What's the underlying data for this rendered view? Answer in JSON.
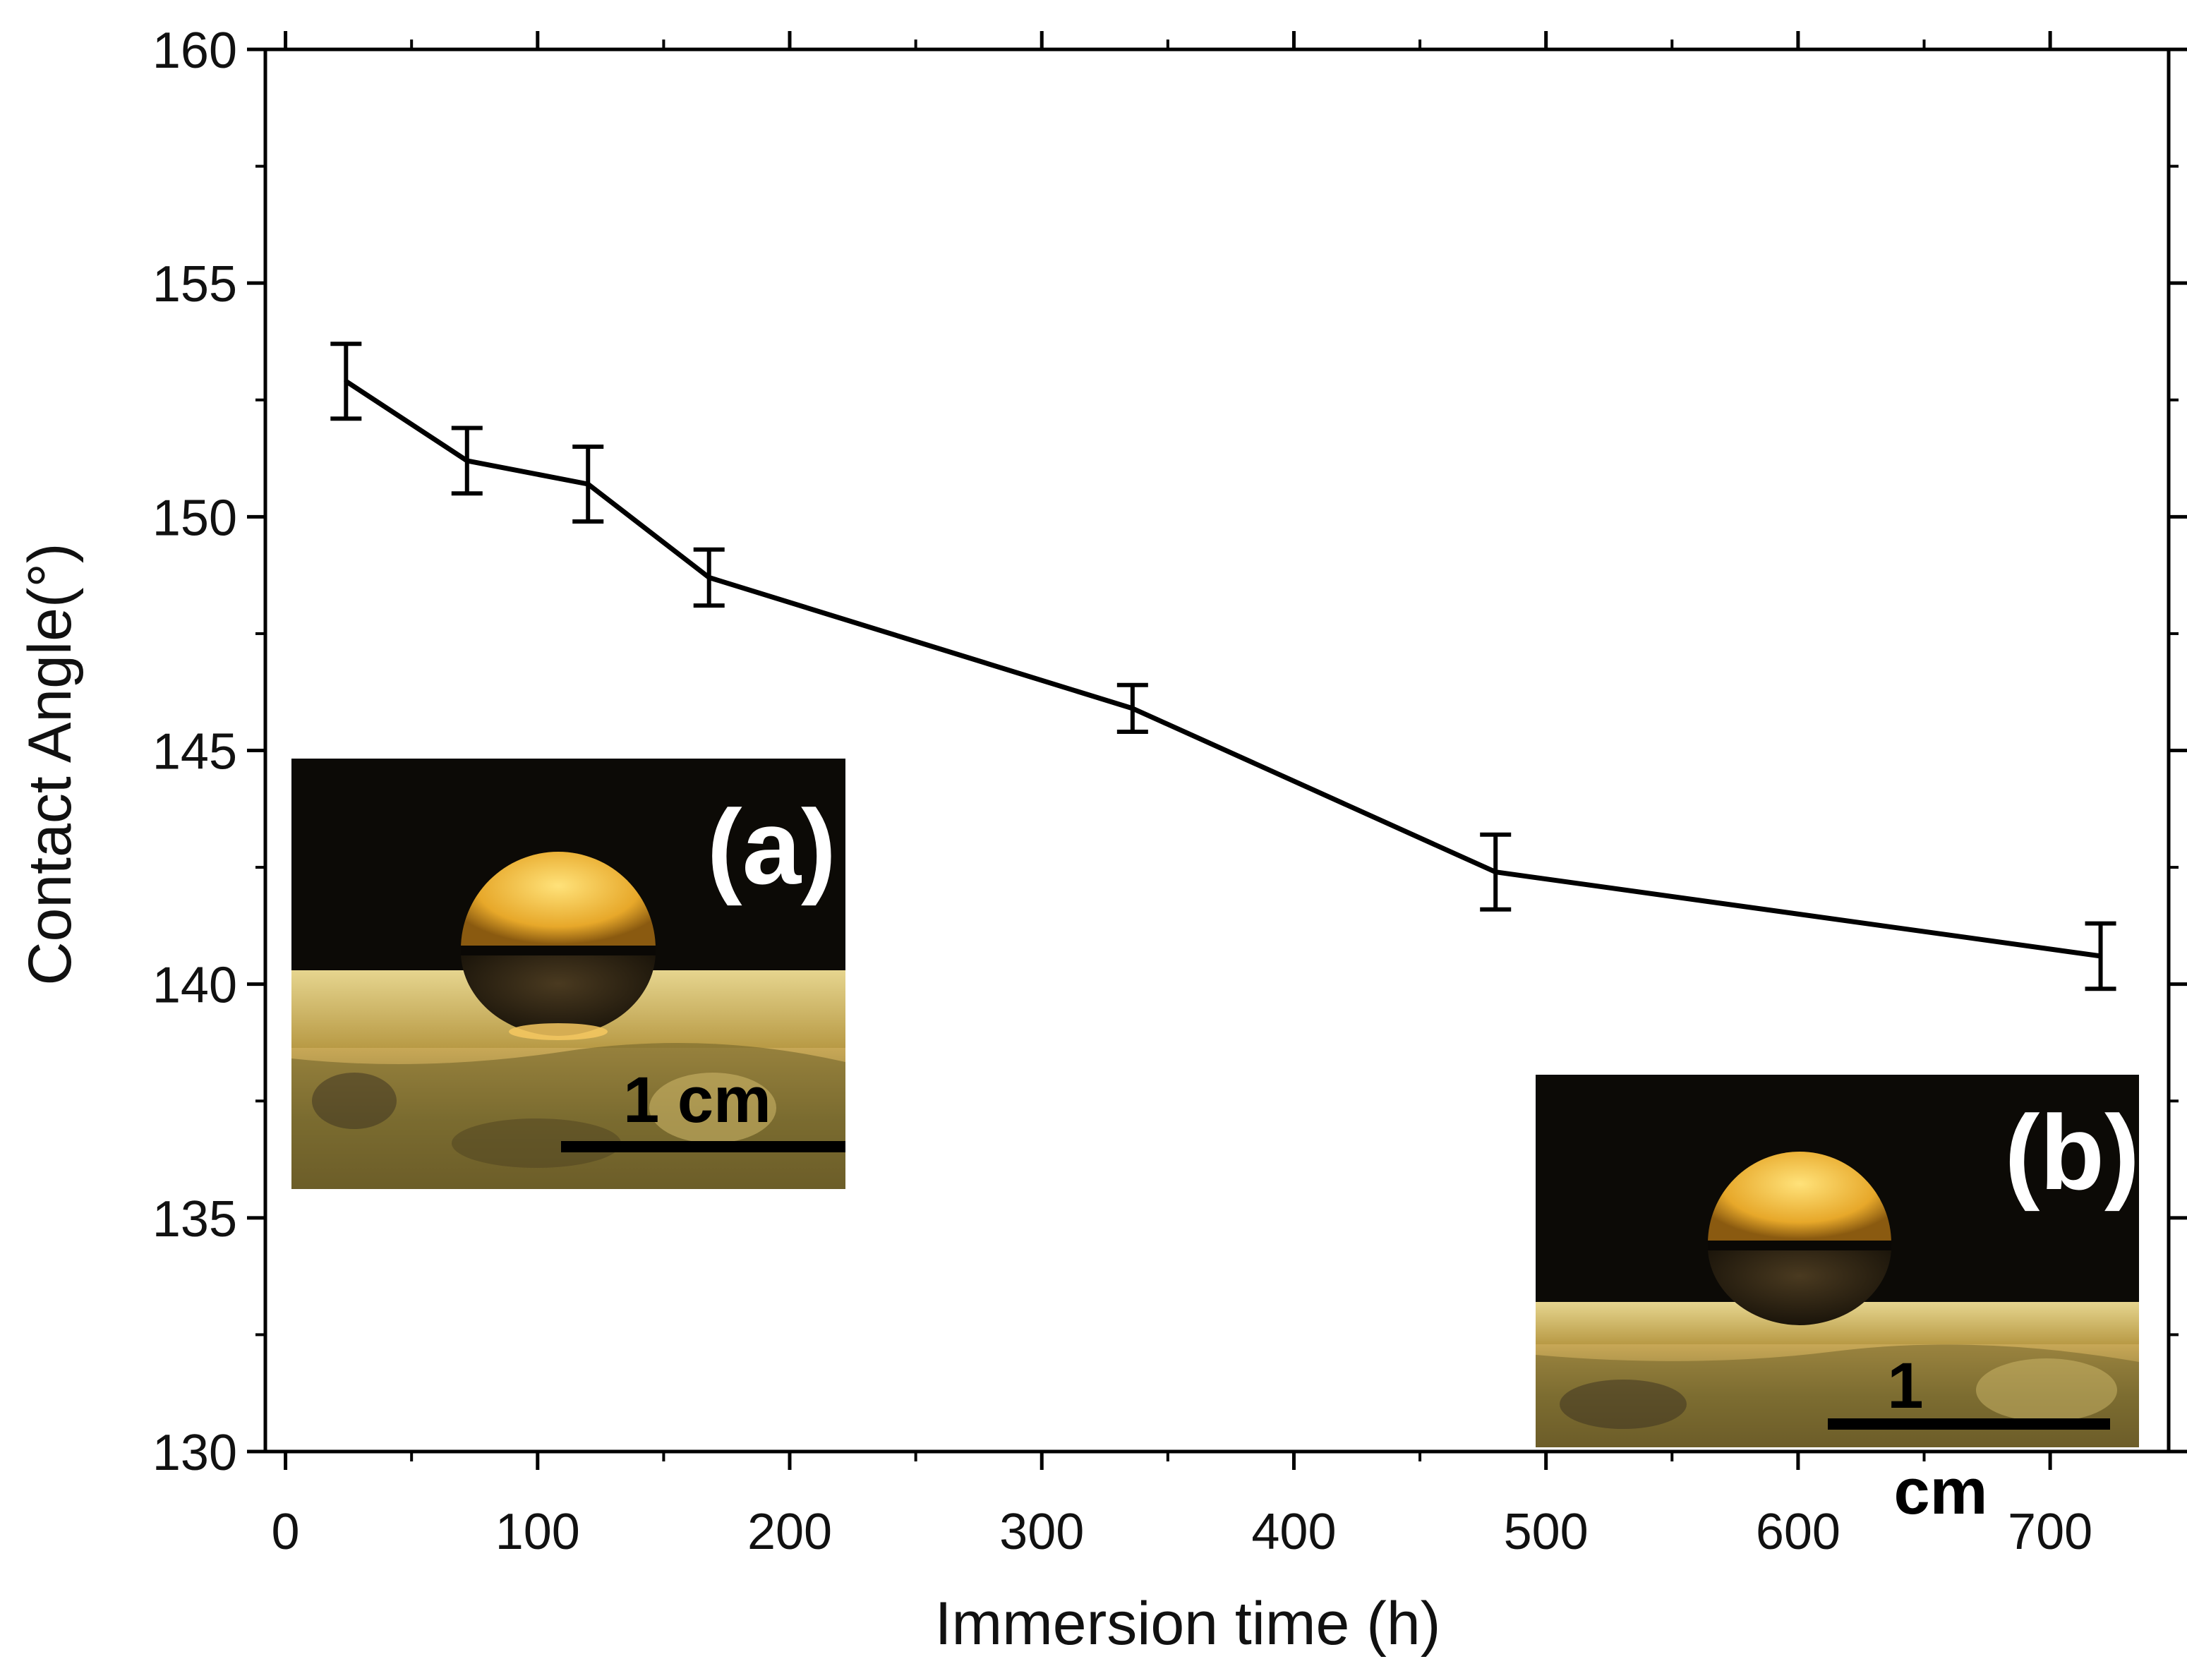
{
  "chart_data": {
    "type": "line",
    "title": "",
    "xlabel": "Immersion time (h)",
    "ylabel": "Contact Angle(°)",
    "xlim": [
      -8,
      747
    ],
    "ylim": [
      130,
      160
    ],
    "xticks": [
      0,
      100,
      200,
      300,
      400,
      500,
      600,
      700
    ],
    "xtick_labels": [
      "0",
      "100",
      "200",
      "300",
      "400",
      "500",
      "600",
      "700"
    ],
    "yticks": [
      130,
      135,
      140,
      145,
      150,
      155,
      160
    ],
    "ytick_labels": [
      "130",
      "135",
      "140",
      "145",
      "150",
      "155",
      "160"
    ],
    "grid": false,
    "series": [
      {
        "name": "Contact angle",
        "color": "#000000",
        "x": [
          24,
          72,
          120,
          168,
          336,
          480,
          720
        ],
        "y": [
          152.9,
          151.2,
          150.7,
          148.7,
          145.9,
          142.4,
          140.6
        ],
        "error": [
          0.8,
          0.7,
          0.8,
          0.6,
          0.5,
          0.8,
          0.7
        ]
      }
    ],
    "insets": [
      {
        "panel": "(a)",
        "scale_label": "1 cm",
        "position": "left-middle"
      },
      {
        "panel": "(b)",
        "scale_label_line1": "1",
        "scale_label_line2": "cm",
        "position": "bottom-right"
      }
    ]
  }
}
